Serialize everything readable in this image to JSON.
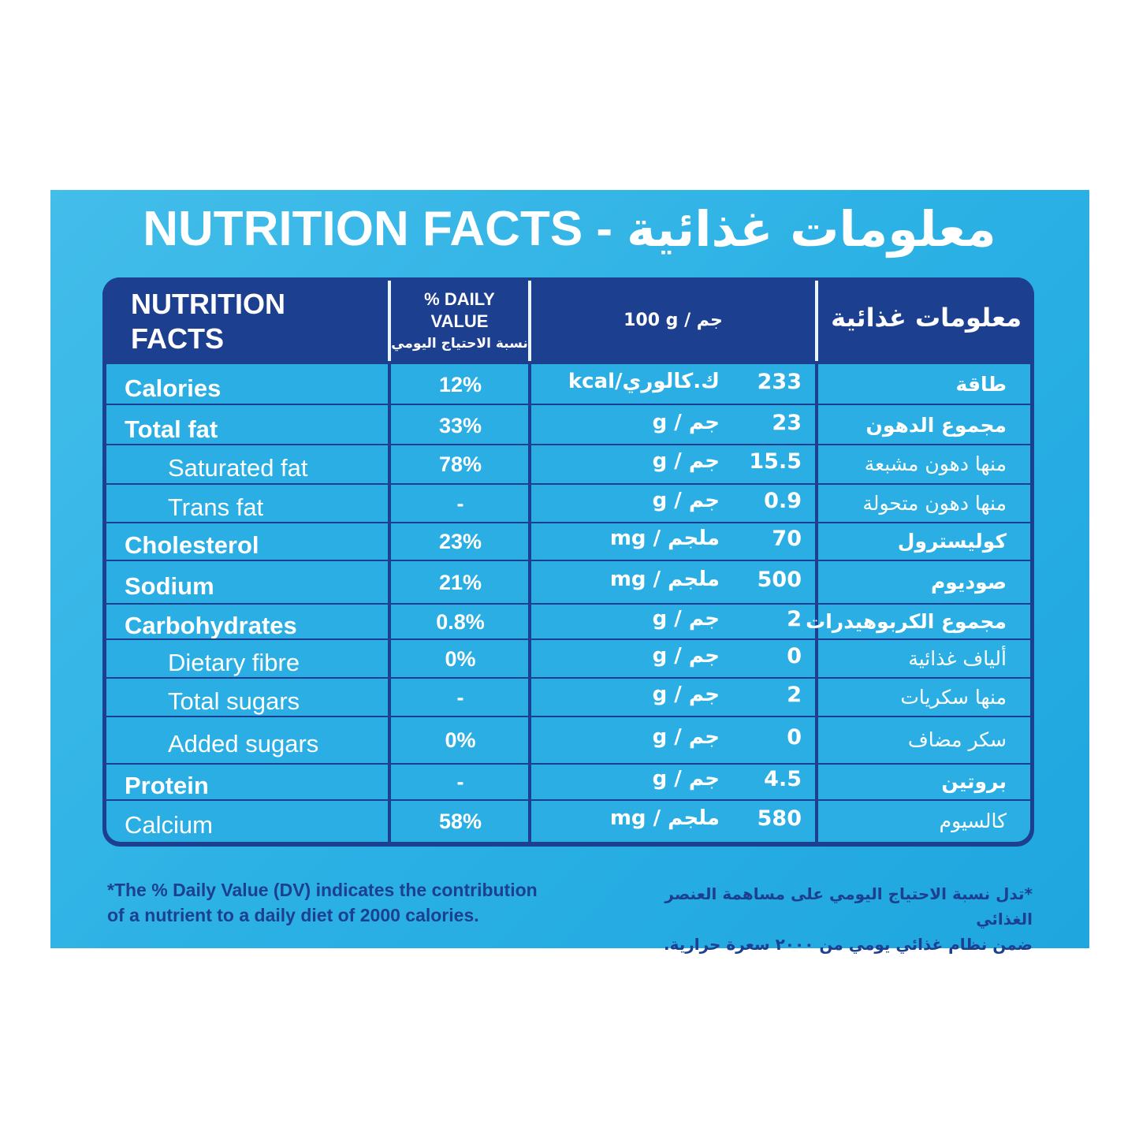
{
  "title": {
    "en": "NUTRITION FACTS -",
    "ar": "معلومات غذائية"
  },
  "header": {
    "col1": [
      "NUTRITION",
      "FACTS"
    ],
    "col2": [
      "% DAILY",
      "VALUE"
    ],
    "col2_ar": "نسبة الاحتياج اليومي",
    "col3": "100 g / جم",
    "col4": "معلومات غذائية"
  },
  "rows": [
    {
      "en": "Calories",
      "style": "bold",
      "dv": "12%",
      "value": "233",
      "unit": "kcal/ك.كالوري",
      "ar": "طاقة",
      "ar_style": "bold"
    },
    {
      "en": "Total fat",
      "style": "bold",
      "dv": "33%",
      "value": "23",
      "unit": "g / جم",
      "ar": "مجموع الدهون",
      "ar_style": "bold"
    },
    {
      "en": "Saturated fat",
      "style": "indent",
      "dv": "78%",
      "value": "15.5",
      "unit": "g / جم",
      "ar": "منها دهون مشبعة",
      "ar_style": "normal"
    },
    {
      "en": "Trans fat",
      "style": "indent",
      "dv": "-",
      "value": "0.9",
      "unit": "g / جم",
      "ar": "منها دهون متحولة",
      "ar_style": "normal"
    },
    {
      "en": "Cholesterol",
      "style": "bold",
      "dv": "23%",
      "value": "70",
      "unit": "mg / ملجم",
      "ar": "كوليسترول",
      "ar_style": "bold"
    },
    {
      "en": "Sodium",
      "style": "bold",
      "dv": "21%",
      "value": "500",
      "unit": "mg / ملجم",
      "ar": "صوديوم",
      "ar_style": "bold"
    },
    {
      "en": "Carbohydrates",
      "style": "bold",
      "dv": "0.8%",
      "value": "2",
      "unit": "g / جم",
      "ar": "مجموع الكربوهيدرات",
      "ar_style": "bold"
    },
    {
      "en": "Dietary fibre",
      "style": "indent",
      "dv": "0%",
      "value": "0",
      "unit": "g / جم",
      "ar": "ألياف غذائية",
      "ar_style": "normal"
    },
    {
      "en": "Total sugars",
      "style": "indent",
      "dv": "-",
      "value": "2",
      "unit": "g / جم",
      "ar": "منها سكريات",
      "ar_style": "normal"
    },
    {
      "en": "Added sugars",
      "style": "indent",
      "dv": "0%",
      "value": "0",
      "unit": "g / جم",
      "ar": "سكر مضاف",
      "ar_style": "normal"
    },
    {
      "en": "Protein",
      "style": "bold",
      "dv": "-",
      "value": "4.5",
      "unit": "g / جم",
      "ar": "بروتين",
      "ar_style": "bold"
    },
    {
      "en": "Calcium",
      "style": "plain",
      "dv": "58%",
      "value": "580",
      "unit": "mg / ملجم",
      "ar": "كالسيوم",
      "ar_style": "normal"
    }
  ],
  "footnote": {
    "en_line1": "*The % Daily Value (DV) indicates the contribution",
    "en_line2": "of a nutrient to a daily diet of 2000 calories.",
    "ar_line1": "*تدل نسبة الاحتياج اليومي على مساهمة العنصر الغذائي",
    "ar_line2": "ضمن نظام غذائي يومي من ٢٠٠٠ سعرة حرارية."
  },
  "colors": {
    "panel": "#2ab0e4",
    "navy": "#1c3f8f",
    "text": "#ffffff"
  }
}
